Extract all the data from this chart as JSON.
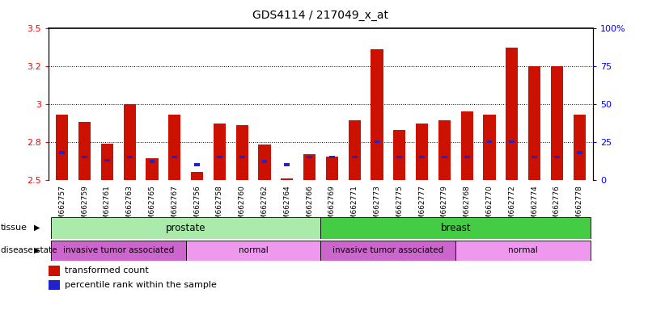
{
  "title": "GDS4114 / 217049_x_at",
  "samples": [
    "GSM662757",
    "GSM662759",
    "GSM662761",
    "GSM662763",
    "GSM662765",
    "GSM662767",
    "GSM662756",
    "GSM662758",
    "GSM662760",
    "GSM662762",
    "GSM662764",
    "GSM662766",
    "GSM662769",
    "GSM662771",
    "GSM662773",
    "GSM662775",
    "GSM662777",
    "GSM662779",
    "GSM662768",
    "GSM662770",
    "GSM662772",
    "GSM662774",
    "GSM662776",
    "GSM662778"
  ],
  "red_values": [
    2.93,
    2.88,
    2.74,
    3.0,
    2.64,
    2.93,
    2.55,
    2.87,
    2.86,
    2.73,
    2.51,
    2.67,
    2.65,
    2.89,
    3.36,
    2.83,
    2.87,
    2.89,
    2.95,
    2.93,
    3.37,
    3.25,
    3.25,
    2.93
  ],
  "blue_positions": [
    2.68,
    2.65,
    2.63,
    2.65,
    2.62,
    2.65,
    2.6,
    2.65,
    2.65,
    2.62,
    2.6,
    2.65,
    2.65,
    2.65,
    2.75,
    2.65,
    2.65,
    2.65,
    2.65,
    2.75,
    2.75,
    2.65,
    2.65,
    2.68
  ],
  "ylim": [
    2.5,
    3.5
  ],
  "yticks_left": [
    2.5,
    2.75,
    3.0,
    3.25,
    3.5
  ],
  "yticks_right_vals": [
    0,
    25,
    50,
    75,
    100
  ],
  "yticks_right_labels": [
    "0",
    "25",
    "50",
    "75",
    "100%"
  ],
  "tissue_groups": [
    {
      "label": "prostate",
      "start": 0,
      "end": 11,
      "color": "#aaeaaa"
    },
    {
      "label": "breast",
      "start": 12,
      "end": 23,
      "color": "#44cc44"
    }
  ],
  "disease_groups": [
    {
      "label": "invasive tumor associated",
      "start": 0,
      "end": 5,
      "color": "#cc66cc"
    },
    {
      "label": "normal",
      "start": 6,
      "end": 11,
      "color": "#ee99ee"
    },
    {
      "label": "invasive tumor associated",
      "start": 12,
      "end": 17,
      "color": "#cc66cc"
    },
    {
      "label": "normal",
      "start": 18,
      "end": 23,
      "color": "#ee99ee"
    }
  ],
  "bar_color": "#cc1100",
  "blue_color": "#2222cc",
  "bar_width": 0.55,
  "bg_color": "#ffffff",
  "plot_bg": "#ffffff",
  "grid_color": "#000000",
  "n_samples": 24
}
